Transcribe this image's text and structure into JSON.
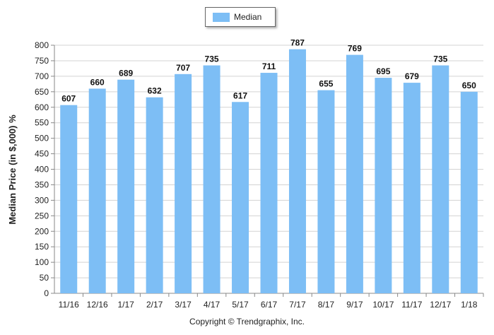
{
  "chart_data": {
    "type": "bar",
    "categories": [
      "11/16",
      "12/16",
      "1/17",
      "2/17",
      "3/17",
      "4/17",
      "5/17",
      "6/17",
      "7/17",
      "8/17",
      "9/17",
      "10/17",
      "11/17",
      "12/17",
      "1/18"
    ],
    "series": [
      {
        "name": "Median",
        "values": [
          607,
          660,
          689,
          632,
          707,
          735,
          617,
          711,
          787,
          655,
          769,
          695,
          679,
          735,
          650
        ]
      }
    ],
    "ylabel": "Median Price (in $,000) %",
    "xlabel": "",
    "ylim": [
      0,
      800
    ],
    "yticks": [
      0,
      50,
      100,
      150,
      200,
      250,
      300,
      350,
      400,
      450,
      500,
      550,
      600,
      650,
      700,
      750,
      800
    ],
    "grid": true,
    "legend": "top-center",
    "bar_color": "#7dbef5",
    "grid_color": "#d3d3d3"
  },
  "footer": {
    "copyright": "Copyright © Trendgraphix, Inc."
  }
}
